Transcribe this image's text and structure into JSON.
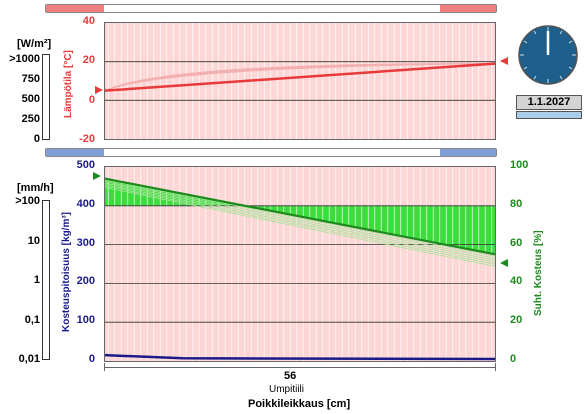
{
  "top_panel": {
    "flux_unit": "[W/m²]",
    "flux_ticks": [
      ">1000",
      "750",
      "500",
      "250",
      "0"
    ],
    "temp_axis_label": "Lämpötila [°C]",
    "temp_ticks": [
      "40",
      "20",
      "0",
      "-20"
    ]
  },
  "bottom_panel": {
    "rain_unit": "[mm/h]",
    "rain_ticks": [
      ">100",
      "10",
      "1",
      "0,1",
      "0,01"
    ],
    "moisture_axis_label": "Kosteuspitoisuus [kg/m³]",
    "moisture_ticks": [
      "500",
      "400",
      "300",
      "200",
      "100",
      "0"
    ],
    "rh_axis_label": "Suht. Kosteus [%]",
    "rh_ticks": [
      "100",
      "80",
      "60",
      "40",
      "20",
      "0"
    ]
  },
  "clock": {
    "date": "1.1.2027"
  },
  "x_axis": {
    "value": "56",
    "material": "Umpitiili",
    "label": "Poikkileikkaus [cm]"
  },
  "colors": {
    "temp": "#e83a3a",
    "moisture": "#1a1a8a",
    "rh": "#1d8a1d",
    "rh_fill": "#3cdc3c",
    "pink": "#fdd6d6"
  },
  "chart_data": [
    {
      "type": "line",
      "ylabel": "Lämpötila [°C]",
      "ylim": [
        -20,
        40
      ],
      "xlim": [
        0,
        56
      ],
      "x": [
        0,
        56
      ],
      "series": [
        {
          "values": [
            5,
            19
          ]
        }
      ],
      "grid": true
    },
    {
      "type": "line",
      "ylabel": "Kosteuspitoisuus [kg/m³]",
      "ylim": [
        0,
        500
      ],
      "xlim": [
        0,
        56
      ],
      "x": [
        0,
        56
      ],
      "series": [
        {
          "values": [
            15,
            5
          ]
        }
      ],
      "y2label": "Suht. Kosteus [%]",
      "y2lim": [
        0,
        100
      ],
      "series2": [
        {
          "values": [
            94,
            55
          ]
        }
      ],
      "grid": true
    }
  ]
}
